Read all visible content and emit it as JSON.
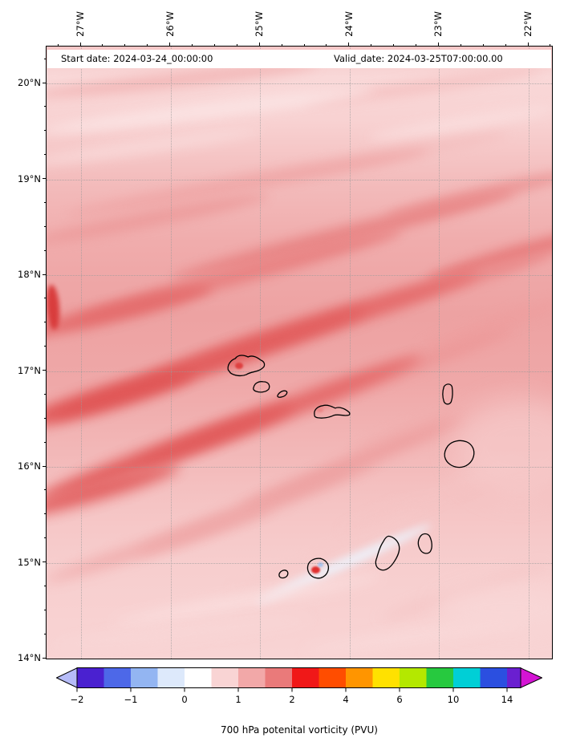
{
  "caption": "700 hPa potenital vorticity (PVU)",
  "header": {
    "start_label": "Start date: 2024-03-24_00:00:00",
    "valid_label": "Valid_date: 2024-03-25T07:00:00.00"
  },
  "axes": {
    "x_labels": [
      "27°W",
      "26°W",
      "25°W",
      "24°W",
      "23°W",
      "22°W"
    ],
    "y_labels": [
      "20°N",
      "19°N",
      "18°N",
      "17°N",
      "16°N",
      "15°N",
      "14°N"
    ]
  },
  "colorbar": {
    "tick_labels": [
      "−2",
      "−1",
      "0",
      "1",
      "2",
      "4",
      "6",
      "10",
      "14"
    ],
    "arrow_left": "#b6bcf8",
    "arrow_right": "#d414d4",
    "over_segment": "#6a1fd0",
    "segments": [
      "#4a21d0",
      "#4d68e8",
      "#93b5f2",
      "#dde9fb",
      "#ffffff",
      "#f9d4d4",
      "#f2a8a8",
      "#ea7a7a",
      "#f01818",
      "#ff4d00",
      "#ff9500",
      "#ffe100",
      "#b4e800",
      "#27c93f",
      "#00cfd6",
      "#2b4fe0"
    ]
  },
  "islands": [
    "Santo Antão",
    "São Vicente",
    "Santa Luzia",
    "São Nicolau",
    "Sal",
    "Boa Vista",
    "Maio",
    "Santiago",
    "Fogo",
    "Brava"
  ],
  "chart_data": {
    "type": "heatmap",
    "title": "",
    "colorbar_label": "700 hPa potenital vorticity (PVU)",
    "colorbar_ticks": [
      -2,
      -1,
      0,
      1,
      2,
      4,
      6,
      10,
      14
    ],
    "x_tick_labels": [
      "27°W",
      "26°W",
      "25°W",
      "24°W",
      "23°W",
      "22°W"
    ],
    "y_tick_labels": [
      "20°N",
      "19°N",
      "18°N",
      "17°N",
      "16°N",
      "15°N",
      "14°N"
    ],
    "lon_extent_degW": [
      27.4,
      21.7
    ],
    "lat_extent_degN": [
      14.0,
      20.4
    ],
    "grid": true,
    "legend_position": "bottom-colorbar",
    "annotations": {
      "start_date": "2024-03-24_00:00:00",
      "valid_date": "2024-03-25T07:00:00.00"
    },
    "units": "PVU",
    "grid_estimate": {
      "lats_degN": [
        20.25,
        19.75,
        19.25,
        18.75,
        18.25,
        17.75,
        17.25,
        16.75,
        16.25,
        15.75,
        15.25,
        14.75,
        14.25
      ],
      "lons_degW": [
        27.25,
        26.75,
        26.25,
        25.75,
        25.25,
        24.75,
        24.25,
        23.75,
        23.25,
        22.75,
        22.25,
        21.75
      ],
      "values_pvu": [
        [
          0.7,
          0.6,
          0.5,
          0.5,
          0.4,
          0.4,
          0.4,
          0.4,
          0.4,
          0.4,
          0.4,
          0.4
        ],
        [
          0.5,
          0.4,
          0.4,
          0.4,
          0.3,
          0.3,
          0.3,
          0.3,
          0.4,
          0.4,
          0.4,
          0.4
        ],
        [
          0.8,
          0.8,
          0.7,
          0.7,
          0.6,
          0.6,
          0.6,
          0.5,
          0.5,
          0.5,
          0.5,
          0.5
        ],
        [
          0.9,
          0.9,
          1.0,
          1.0,
          0.9,
          0.9,
          0.9,
          0.8,
          0.8,
          0.8,
          0.7,
          0.7
        ],
        [
          1.0,
          1.1,
          1.1,
          1.2,
          1.2,
          1.1,
          1.1,
          1.0,
          1.0,
          1.0,
          0.9,
          0.8
        ],
        [
          1.2,
          1.2,
          1.3,
          1.3,
          1.2,
          1.2,
          1.2,
          1.1,
          1.1,
          1.0,
          0.9,
          0.9
        ],
        [
          1.3,
          1.4,
          1.4,
          1.4,
          1.3,
          1.2,
          1.2,
          1.1,
          1.0,
          0.9,
          0.9,
          0.8
        ],
        [
          1.4,
          1.5,
          1.5,
          1.4,
          1.3,
          1.2,
          1.1,
          1.0,
          0.9,
          0.8,
          0.8,
          0.7
        ],
        [
          1.5,
          1.5,
          1.4,
          1.3,
          1.2,
          1.1,
          1.0,
          0.9,
          0.8,
          0.7,
          0.7,
          0.6
        ],
        [
          1.4,
          1.3,
          1.2,
          1.1,
          1.0,
          0.9,
          0.8,
          0.7,
          0.7,
          0.6,
          0.6,
          0.5
        ],
        [
          1.0,
          0.9,
          0.9,
          0.8,
          0.7,
          0.6,
          0.6,
          0.5,
          0.5,
          0.5,
          0.4,
          0.4
        ],
        [
          0.7,
          0.6,
          0.6,
          0.5,
          0.5,
          0.5,
          0.4,
          0.4,
          0.4,
          0.4,
          0.4,
          0.4
        ],
        [
          0.6,
          0.5,
          0.5,
          0.5,
          0.4,
          0.4,
          0.4,
          0.4,
          0.3,
          0.3,
          0.3,
          0.3
        ]
      ]
    }
  },
  "field_streaks": [
    [
      160,
      42,
      360,
      18,
      -6,
      "#f0acac",
      0.7,
      7
    ],
    [
      470,
      50,
      300,
      16,
      -8,
      "#f4bcbc",
      0.7,
      7
    ],
    [
      200,
      80,
      420,
      20,
      -7,
      "#fbe4e4",
      0.9,
      7
    ],
    [
      520,
      95,
      240,
      16,
      -9,
      "#fadede",
      0.9,
      7
    ],
    [
      120,
      125,
      300,
      18,
      -8,
      "#f9dada",
      0.8,
      7
    ],
    [
      430,
      135,
      300,
      16,
      -10,
      "#f3bcbc",
      0.7,
      7
    ],
    [
      250,
      170,
      460,
      20,
      -10,
      "#efa4a4",
      0.8,
      7
    ],
    [
      540,
      185,
      240,
      18,
      -13,
      "#eb9292",
      0.85,
      7
    ],
    [
      130,
      215,
      300,
      20,
      -11,
      "#ec9a9a",
      0.85,
      7
    ],
    [
      370,
      235,
      440,
      22,
      -14,
      "#e88484",
      0.9,
      7
    ],
    [
      580,
      260,
      220,
      20,
      -16,
      "#e67878",
      0.9,
      7
    ],
    [
      240,
      285,
      420,
      22,
      -15,
      "#e88080",
      0.9,
      7
    ],
    [
      490,
      300,
      300,
      20,
      -17,
      "#ea8a8a",
      0.85,
      7
    ],
    [
      90,
      330,
      240,
      24,
      -14,
      "#e46a6a",
      0.9,
      7
    ],
    [
      330,
      350,
      440,
      24,
      -18,
      "#e46666",
      0.9,
      8
    ],
    [
      560,
      345,
      200,
      16,
      -18,
      "#ee9e9e",
      0.8,
      8
    ],
    [
      200,
      395,
      420,
      26,
      -19,
      "#e25c5c",
      0.9,
      8
    ],
    [
      450,
      400,
      280,
      18,
      -20,
      "#ec9494",
      0.8,
      8
    ],
    [
      70,
      440,
      240,
      28,
      -16,
      "#e05454",
      0.9,
      8
    ],
    [
      290,
      455,
      380,
      24,
      -21,
      "#e46464",
      0.9,
      8
    ],
    [
      500,
      460,
      260,
      16,
      -20,
      "#f0acac",
      0.75,
      8
    ],
    [
      150,
      505,
      340,
      26,
      -20,
      "#e15858",
      0.9,
      8
    ],
    [
      380,
      520,
      300,
      18,
      -22,
      "#ec9898",
      0.8,
      8
    ],
    [
      60,
      555,
      220,
      24,
      -16,
      "#e25e5e",
      0.9,
      8
    ],
    [
      260,
      575,
      320,
      20,
      -21,
      "#eda0a0",
      0.8,
      8
    ],
    [
      480,
      560,
      240,
      14,
      -22,
      "#f5c4c4",
      0.75,
      8
    ],
    [
      140,
      620,
      300,
      18,
      -18,
      "#efa6a6",
      0.8,
      8
    ],
    [
      350,
      630,
      260,
      14,
      -23,
      "#f6caca",
      0.8,
      8
    ],
    [
      370,
      645,
      240,
      14,
      -24,
      "#edf2fb",
      0.9,
      5
    ],
    [
      250,
      690,
      340,
      16,
      -10,
      "#fbe0e0",
      0.85,
      8
    ],
    [
      520,
      680,
      220,
      14,
      -18,
      "#f4c2c2",
      0.7,
      8
    ],
    [
      170,
      730,
      320,
      14,
      -6,
      "#f9d8d8",
      0.8,
      8
    ],
    [
      460,
      735,
      280,
      14,
      -8,
      "#fadcdc",
      0.8,
      8
    ],
    [
      8,
      325,
      16,
      56,
      -4,
      "#d83838",
      0.95,
      3
    ],
    [
      575,
      700,
      180,
      60,
      0,
      "#f9d8d8",
      0.7,
      14
    ],
    [
      590,
      500,
      160,
      120,
      0,
      "#f7cece",
      0.6,
      16
    ],
    [
      341,
      453,
      8,
      6,
      0,
      "#ec8888",
      1,
      1
    ],
    [
      240,
      398,
      10,
      8,
      0,
      "#de4040",
      1,
      1
    ],
    [
      335,
      652,
      11,
      9,
      0,
      "#e03030",
      1,
      1
    ],
    [
      341,
      646,
      7,
      6,
      0,
      "#a9c3ee",
      1,
      1
    ]
  ]
}
